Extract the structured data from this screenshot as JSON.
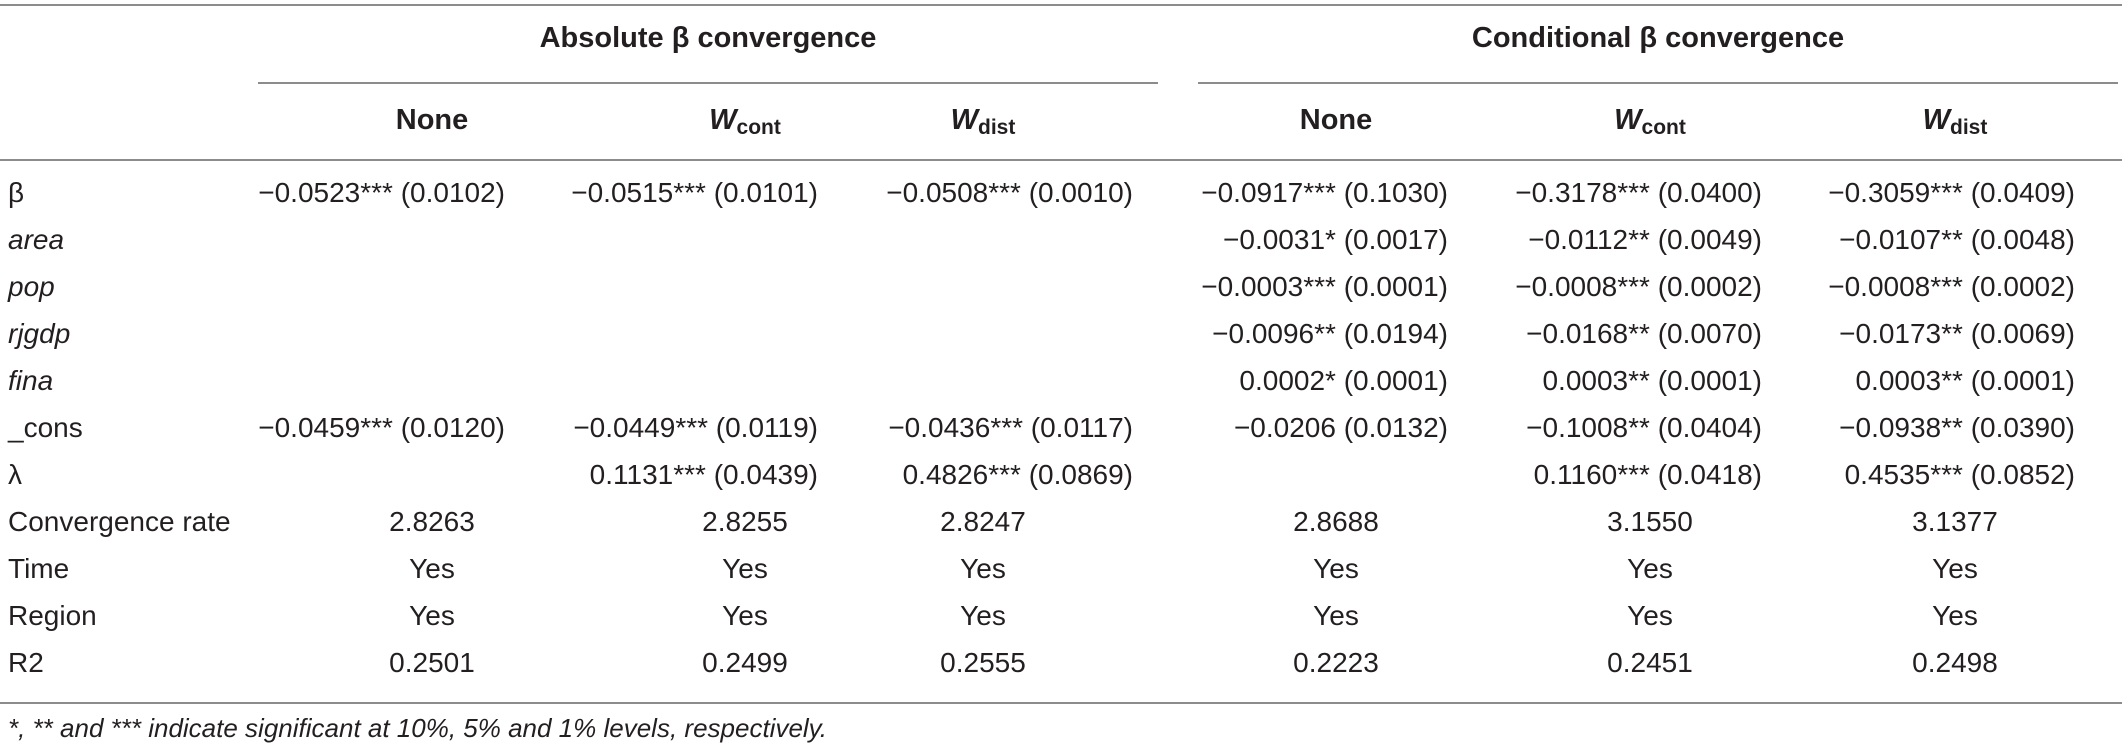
{
  "table": {
    "group_headers": [
      "Absolute β convergence",
      "Conditional β convergence"
    ],
    "columns": [
      {
        "main": "None",
        "sub": ""
      },
      {
        "main": "W",
        "sub": "cont"
      },
      {
        "main": "W",
        "sub": "dist"
      },
      {
        "main": "None",
        "sub": ""
      },
      {
        "main": "W",
        "sub": "cont"
      },
      {
        "main": "W",
        "sub": "dist"
      }
    ],
    "rows": [
      {
        "label": "β",
        "italic": false,
        "align": "right",
        "cells": [
          "−0.0523*** (0.0102)",
          "−0.0515*** (0.0101)",
          "−0.0508*** (0.0010)",
          "−0.0917*** (0.1030)",
          "−0.3178*** (0.0400)",
          "−0.3059*** (0.0409)"
        ]
      },
      {
        "label": "area",
        "italic": true,
        "align": "right",
        "cells": [
          "",
          "",
          "",
          "−0.0031* (0.0017)",
          "−0.0112** (0.0049)",
          "−0.0107** (0.0048)"
        ]
      },
      {
        "label": "pop",
        "italic": true,
        "align": "right",
        "cells": [
          "",
          "",
          "",
          "−0.0003*** (0.0001)",
          "−0.0008*** (0.0002)",
          "−0.0008*** (0.0002)"
        ]
      },
      {
        "label": "rjgdp",
        "italic": true,
        "align": "right",
        "cells": [
          "",
          "",
          "",
          "−0.0096** (0.0194)",
          "−0.0168** (0.0070)",
          "−0.0173** (0.0069)"
        ]
      },
      {
        "label": "fina",
        "italic": true,
        "align": "right",
        "cells": [
          "",
          "",
          "",
          "0.0002* (0.0001)",
          "0.0003** (0.0001)",
          "0.0003** (0.0001)"
        ]
      },
      {
        "label": "_cons",
        "italic": false,
        "align": "right",
        "cells": [
          "−0.0459*** (0.0120)",
          "−0.0449*** (0.0119)",
          "−0.0436*** (0.0117)",
          "−0.0206 (0.0132)",
          "−0.1008** (0.0404)",
          "−0.0938** (0.0390)"
        ]
      },
      {
        "label": "λ",
        "italic": false,
        "align": "right",
        "cells": [
          "",
          "0.1131*** (0.0439)",
          "0.4826*** (0.0869)",
          "",
          "0.1160*** (0.0418)",
          "0.4535*** (0.0852)"
        ]
      },
      {
        "label": "Convergence rate",
        "italic": false,
        "align": "center",
        "cells": [
          "2.8263",
          "2.8255",
          "2.8247",
          "2.8688",
          "3.1550",
          "3.1377"
        ]
      },
      {
        "label": "Time",
        "italic": false,
        "align": "center",
        "cells": [
          "Yes",
          "Yes",
          "Yes",
          "Yes",
          "Yes",
          "Yes"
        ]
      },
      {
        "label": "Region",
        "italic": false,
        "align": "center",
        "cells": [
          "Yes",
          "Yes",
          "Yes",
          "Yes",
          "Yes",
          "Yes"
        ]
      },
      {
        "label": "R2",
        "italic": false,
        "align": "center",
        "cells": [
          "0.2501",
          "0.2499",
          "0.2555",
          "0.2223",
          "0.2451",
          "0.2498"
        ]
      }
    ],
    "footnote": "*, ** and *** indicate significant at 10%, 5% and 1% levels, respectively."
  }
}
